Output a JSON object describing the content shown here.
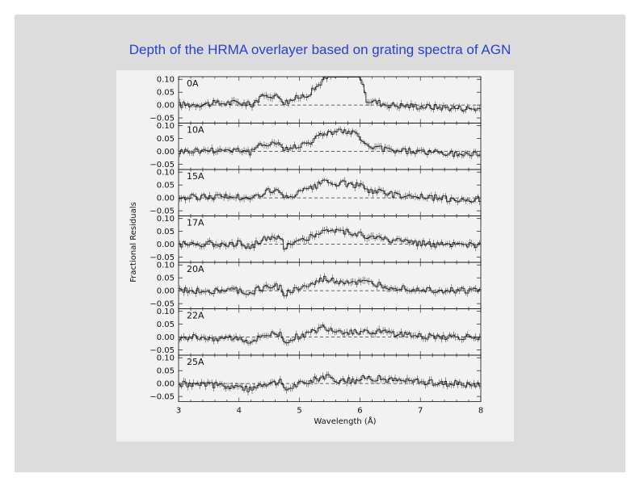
{
  "slide": {
    "title": "Depth of the HRMA overlayer based on grating spectra of AGN",
    "colors": {
      "background": "#dcdcdc",
      "title": "#2a3fd0",
      "panel": "#f2f2f2"
    }
  },
  "chart_data": {
    "type": "line",
    "title": "",
    "xlabel": "Wavelength (Å)",
    "ylabel": "Fractional Residuals",
    "xlim": [
      3,
      8
    ],
    "ylim": [
      -0.07,
      0.11
    ],
    "x_ticks": [
      "3",
      "4",
      "5",
      "6",
      "7",
      "8"
    ],
    "y_ticks": [
      "0.10",
      "0.05",
      "0.00",
      "−0.05"
    ],
    "reference_line": 0.0,
    "grid": false,
    "legend": "none",
    "panels": [
      {
        "label": "0A",
        "x": [
          3.0,
          3.5,
          4.0,
          4.2,
          4.3,
          4.5,
          4.7,
          4.75,
          5.0,
          5.2,
          5.4,
          5.6,
          5.8,
          6.0,
          6.1,
          6.5,
          7.0,
          7.5,
          8.0
        ],
        "y": [
          0.0,
          0.005,
          0.01,
          0.0,
          0.02,
          0.04,
          0.03,
          0.01,
          0.03,
          0.05,
          0.1,
          0.12,
          0.13,
          0.12,
          0.02,
          0.0,
          -0.005,
          -0.01,
          -0.015
        ]
      },
      {
        "label": "10A",
        "x": [
          3.0,
          3.5,
          4.0,
          4.2,
          4.3,
          4.5,
          4.7,
          4.75,
          5.0,
          5.2,
          5.4,
          5.6,
          5.8,
          6.0,
          6.1,
          6.5,
          7.0,
          7.5,
          8.0
        ],
        "y": [
          0.0,
          0.005,
          0.008,
          -0.005,
          0.015,
          0.035,
          0.03,
          0.005,
          0.025,
          0.04,
          0.07,
          0.08,
          0.075,
          0.06,
          0.02,
          0.005,
          0.0,
          -0.01,
          -0.01
        ]
      },
      {
        "label": "15A",
        "x": [
          3.0,
          3.5,
          4.0,
          4.2,
          4.3,
          4.5,
          4.7,
          4.75,
          5.0,
          5.2,
          5.4,
          5.6,
          5.8,
          6.0,
          6.1,
          6.5,
          7.0,
          7.5,
          8.0
        ],
        "y": [
          0.0,
          0.005,
          0.005,
          -0.01,
          0.01,
          0.03,
          0.02,
          -0.005,
          0.02,
          0.035,
          0.06,
          0.055,
          0.055,
          0.045,
          0.035,
          0.015,
          0.005,
          -0.005,
          -0.005
        ]
      },
      {
        "label": "17A",
        "x": [
          3.0,
          3.5,
          4.0,
          4.2,
          4.3,
          4.5,
          4.7,
          4.75,
          5.0,
          5.2,
          5.4,
          5.6,
          5.8,
          6.0,
          6.1,
          6.5,
          7.0,
          7.5,
          8.0
        ],
        "y": [
          0.0,
          0.003,
          0.003,
          -0.01,
          0.008,
          0.025,
          0.02,
          -0.008,
          0.015,
          0.03,
          0.055,
          0.05,
          0.05,
          0.04,
          0.03,
          0.015,
          0.005,
          -0.005,
          -0.005
        ]
      },
      {
        "label": "20A",
        "x": [
          3.0,
          3.5,
          4.0,
          4.2,
          4.3,
          4.5,
          4.7,
          4.75,
          5.0,
          5.2,
          5.4,
          5.6,
          5.8,
          6.0,
          6.1,
          6.5,
          7.0,
          7.5,
          8.0
        ],
        "y": [
          0.0,
          0.0,
          0.0,
          -0.015,
          0.005,
          0.015,
          0.015,
          -0.015,
          0.01,
          0.02,
          0.045,
          0.035,
          0.035,
          0.03,
          0.03,
          0.015,
          0.005,
          0.0,
          0.0
        ]
      },
      {
        "label": "22A",
        "x": [
          3.0,
          3.5,
          4.0,
          4.2,
          4.3,
          4.5,
          4.7,
          4.75,
          5.0,
          5.2,
          5.4,
          5.6,
          5.8,
          6.0,
          6.1,
          6.5,
          7.0,
          7.5,
          8.0
        ],
        "y": [
          0.0,
          -0.003,
          -0.005,
          -0.02,
          0.0,
          0.01,
          0.01,
          -0.02,
          0.005,
          0.015,
          0.04,
          0.025,
          0.02,
          0.02,
          0.025,
          0.015,
          0.005,
          0.0,
          0.0
        ]
      },
      {
        "label": "25A",
        "x": [
          3.0,
          3.5,
          4.0,
          4.2,
          4.3,
          4.5,
          4.7,
          4.75,
          5.0,
          5.2,
          5.4,
          5.6,
          5.8,
          6.0,
          6.1,
          6.5,
          7.0,
          7.5,
          8.0
        ],
        "y": [
          0.0,
          -0.005,
          -0.01,
          -0.025,
          -0.005,
          0.005,
          0.005,
          -0.025,
          0.0,
          0.01,
          0.03,
          0.015,
          0.01,
          0.015,
          0.025,
          0.015,
          0.005,
          0.0,
          -0.005
        ]
      }
    ]
  }
}
